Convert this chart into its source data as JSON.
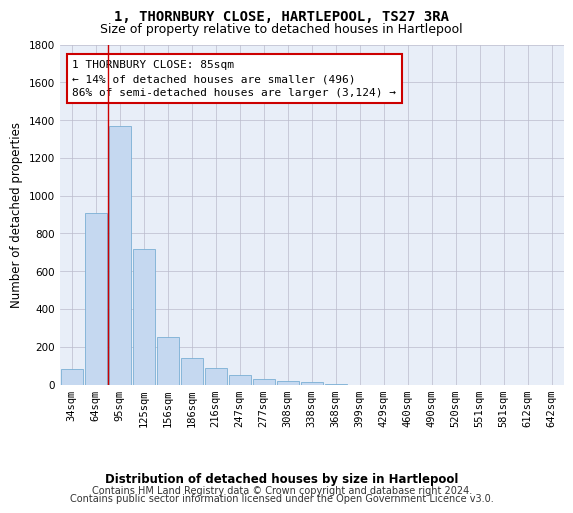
{
  "title": "1, THORNBURY CLOSE, HARTLEPOOL, TS27 3RA",
  "subtitle": "Size of property relative to detached houses in Hartlepool",
  "xlabel": "Distribution of detached houses by size in Hartlepool",
  "ylabel": "Number of detached properties",
  "footer_line1": "Contains HM Land Registry data © Crown copyright and database right 2024.",
  "footer_line2": "Contains public sector information licensed under the Open Government Licence v3.0.",
  "categories": [
    "34sqm",
    "64sqm",
    "95sqm",
    "125sqm",
    "156sqm",
    "186sqm",
    "216sqm",
    "247sqm",
    "277sqm",
    "308sqm",
    "338sqm",
    "368sqm",
    "399sqm",
    "429sqm",
    "460sqm",
    "490sqm",
    "520sqm",
    "551sqm",
    "581sqm",
    "612sqm",
    "642sqm"
  ],
  "values": [
    80,
    910,
    1370,
    720,
    250,
    140,
    85,
    50,
    30,
    20,
    15,
    5,
    0,
    0,
    0,
    0,
    0,
    0,
    0,
    0,
    0
  ],
  "bar_color": "#c5d8f0",
  "bar_edge_color": "#7aafd4",
  "grid_color": "#bbbbcc",
  "background_color": "#ffffff",
  "plot_bg_color": "#e8eef8",
  "annotation_text_line1": "1 THORNBURY CLOSE: 85sqm",
  "annotation_text_line2": "← 14% of detached houses are smaller (496)",
  "annotation_text_line3": "86% of semi-detached houses are larger (3,124) →",
  "annotation_box_color": "#cc0000",
  "property_line_x": 1.5,
  "ylim": [
    0,
    1800
  ],
  "yticks": [
    0,
    200,
    400,
    600,
    800,
    1000,
    1200,
    1400,
    1600,
    1800
  ],
  "title_fontsize": 10,
  "subtitle_fontsize": 9,
  "axis_label_fontsize": 8.5,
  "tick_fontsize": 7.5,
  "footer_fontsize": 7,
  "ann_fontsize": 8
}
